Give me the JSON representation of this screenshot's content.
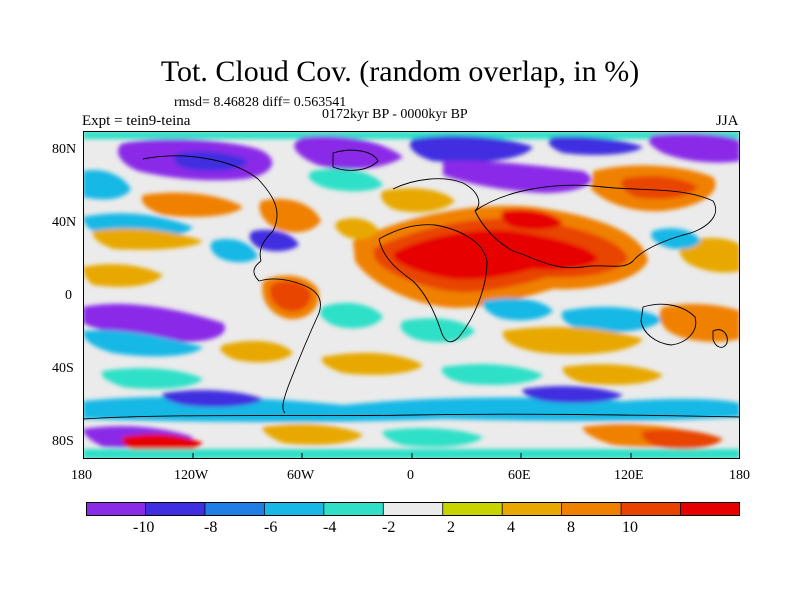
{
  "title": "Tot. Cloud Cov. (random overlap, in %)",
  "stats": "rmsd= 8.46828 diff= 0.563541",
  "period": "0172kyr BP - 0000kyr BP",
  "experiment": "Expt = tein9-teina",
  "season": "JJA",
  "lat_labels": [
    "80N",
    "40N",
    "0",
    "40S",
    "80S"
  ],
  "lon_labels": [
    "180",
    "120W",
    "60W",
    "0",
    "60E",
    "120E",
    "180"
  ],
  "colorbar": {
    "colors": [
      "#8a2be8",
      "#3f2fe0",
      "#1f7fe6",
      "#18b8e6",
      "#2fe0c7",
      "#ebebeb",
      "#c8d400",
      "#e8a800",
      "#f08000",
      "#e84400",
      "#e60000"
    ],
    "labels": [
      "-10",
      "-8",
      "-6",
      "-4",
      "-2",
      "2",
      "4",
      "8",
      "10"
    ]
  },
  "colors": {
    "background": "#ebebeb",
    "coast": "#000000"
  }
}
